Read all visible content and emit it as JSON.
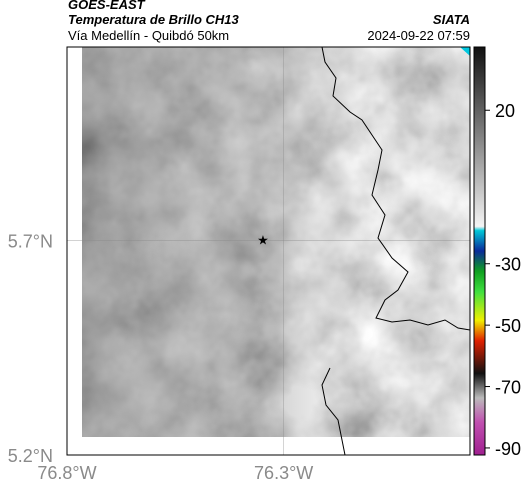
{
  "header": {
    "source": "GOES-EAST",
    "title": "Temperatura de Brillo CH13",
    "location": "Vía Medellín - Quibdó 50km",
    "org": "SIATA",
    "timestamp": "2024-09-22 07:59"
  },
  "map": {
    "xlim": [
      -76.8,
      -75.87
    ],
    "ylim": [
      5.2,
      6.15
    ],
    "xticks": [
      {
        "value": -76.8,
        "label": "76.8°W"
      },
      {
        "value": -76.3,
        "label": "76.3°W"
      }
    ],
    "yticks": [
      {
        "value": 5.2,
        "label": "5.2°N"
      },
      {
        "value": 5.7,
        "label": "5.7°N"
      }
    ]
  },
  "colorbar": {
    "ylim": [
      -92.3,
      40.6
    ],
    "yticks": [
      20,
      -30,
      -50,
      -70,
      -90
    ]
  }
}
